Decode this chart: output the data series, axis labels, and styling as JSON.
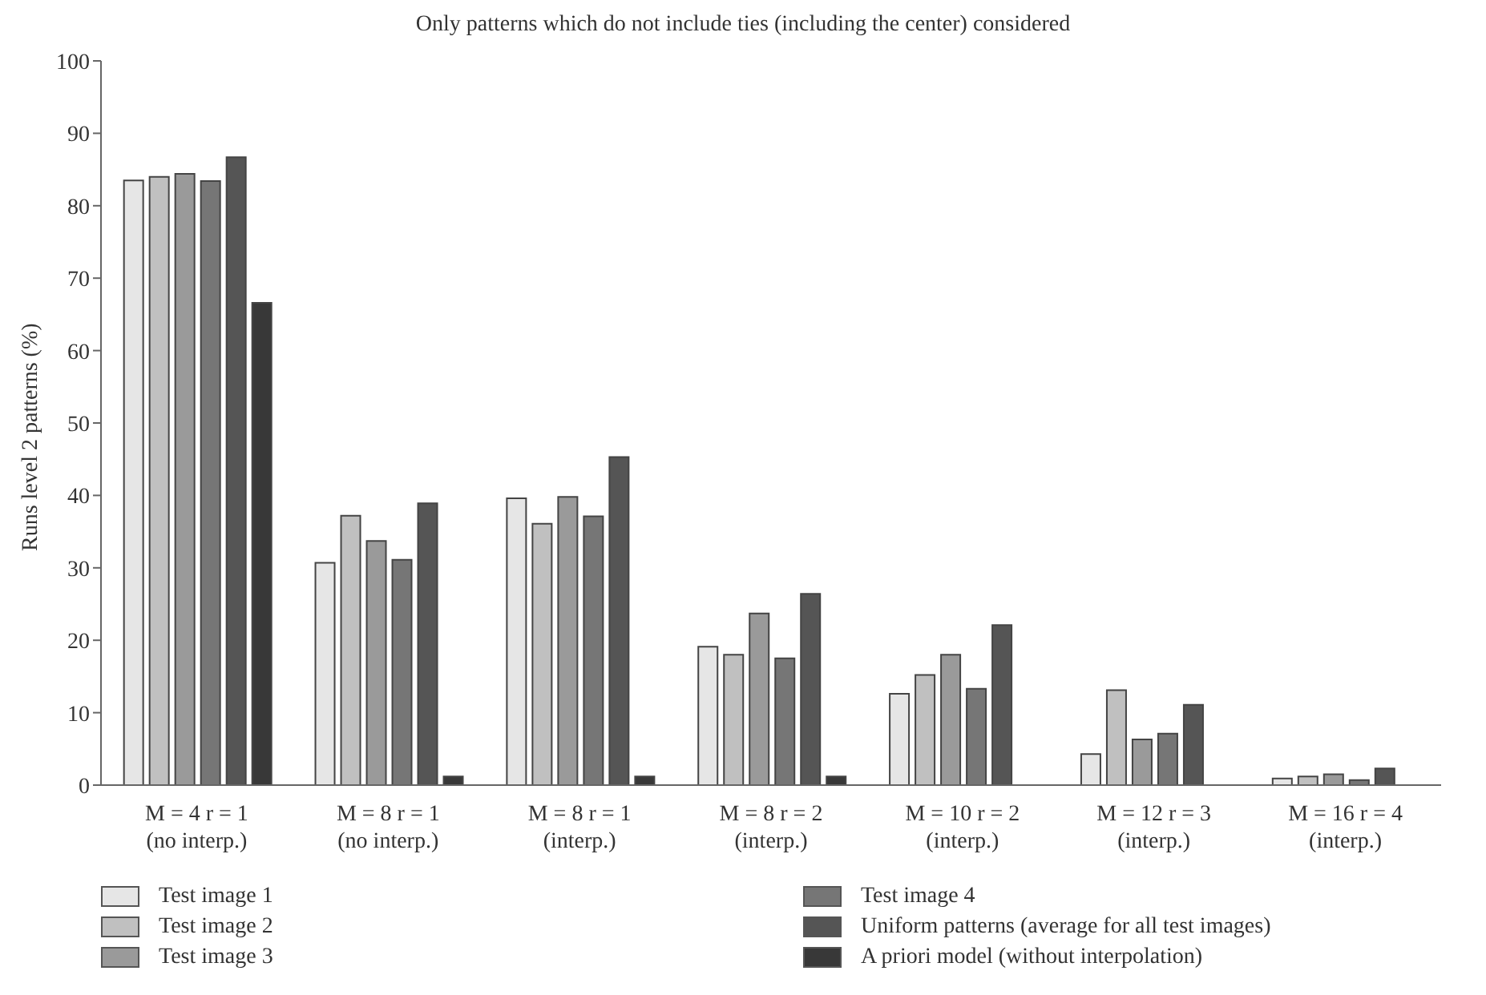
{
  "chart_data": {
    "type": "bar",
    "title": "Only patterns which do not include ties (including the center) considered",
    "ylabel": "Runs level 2 patterns (%)",
    "categories": [
      "M = 4  r = 1\n(no interp.)",
      "M = 8  r = 1\n(no interp.)",
      "M = 8  r = 1\n(interp.)",
      "M = 8  r = 2\n(interp.)",
      "M = 10  r = 2\n(interp.)",
      "M = 12  r = 3\n(interp.)",
      "M = 16  r = 4\n(interp.)"
    ],
    "series": [
      {
        "name": "Test image 1",
        "color": "#e6e6e6",
        "values": [
          83.5,
          30.7,
          39.6,
          19.1,
          12.6,
          4.3,
          0.9
        ]
      },
      {
        "name": "Test image 2",
        "color": "#c0c0c0",
        "values": [
          84.0,
          37.2,
          36.1,
          18.0,
          15.2,
          13.1,
          1.2
        ]
      },
      {
        "name": "Test image 3",
        "color": "#9a9a9a",
        "values": [
          84.4,
          33.7,
          39.8,
          23.7,
          18.0,
          6.3,
          1.5
        ]
      },
      {
        "name": "Test image 4",
        "color": "#767676",
        "values": [
          83.4,
          31.1,
          37.1,
          17.5,
          13.3,
          7.1,
          0.7
        ]
      },
      {
        "name": "Uniform patterns (average for all test images)",
        "color": "#555555",
        "values": [
          86.7,
          38.9,
          45.3,
          26.4,
          22.1,
          11.1,
          2.3
        ]
      },
      {
        "name": "A priori model (without interpolation)",
        "color": "#383838",
        "values": [
          66.6,
          1.2,
          1.2,
          1.2,
          null,
          null,
          null
        ]
      }
    ],
    "ylim": [
      0,
      100
    ],
    "yticks": [
      0,
      10,
      20,
      30,
      40,
      50,
      60,
      70,
      80,
      90,
      100
    ],
    "grid": false,
    "legend": "bottom"
  }
}
